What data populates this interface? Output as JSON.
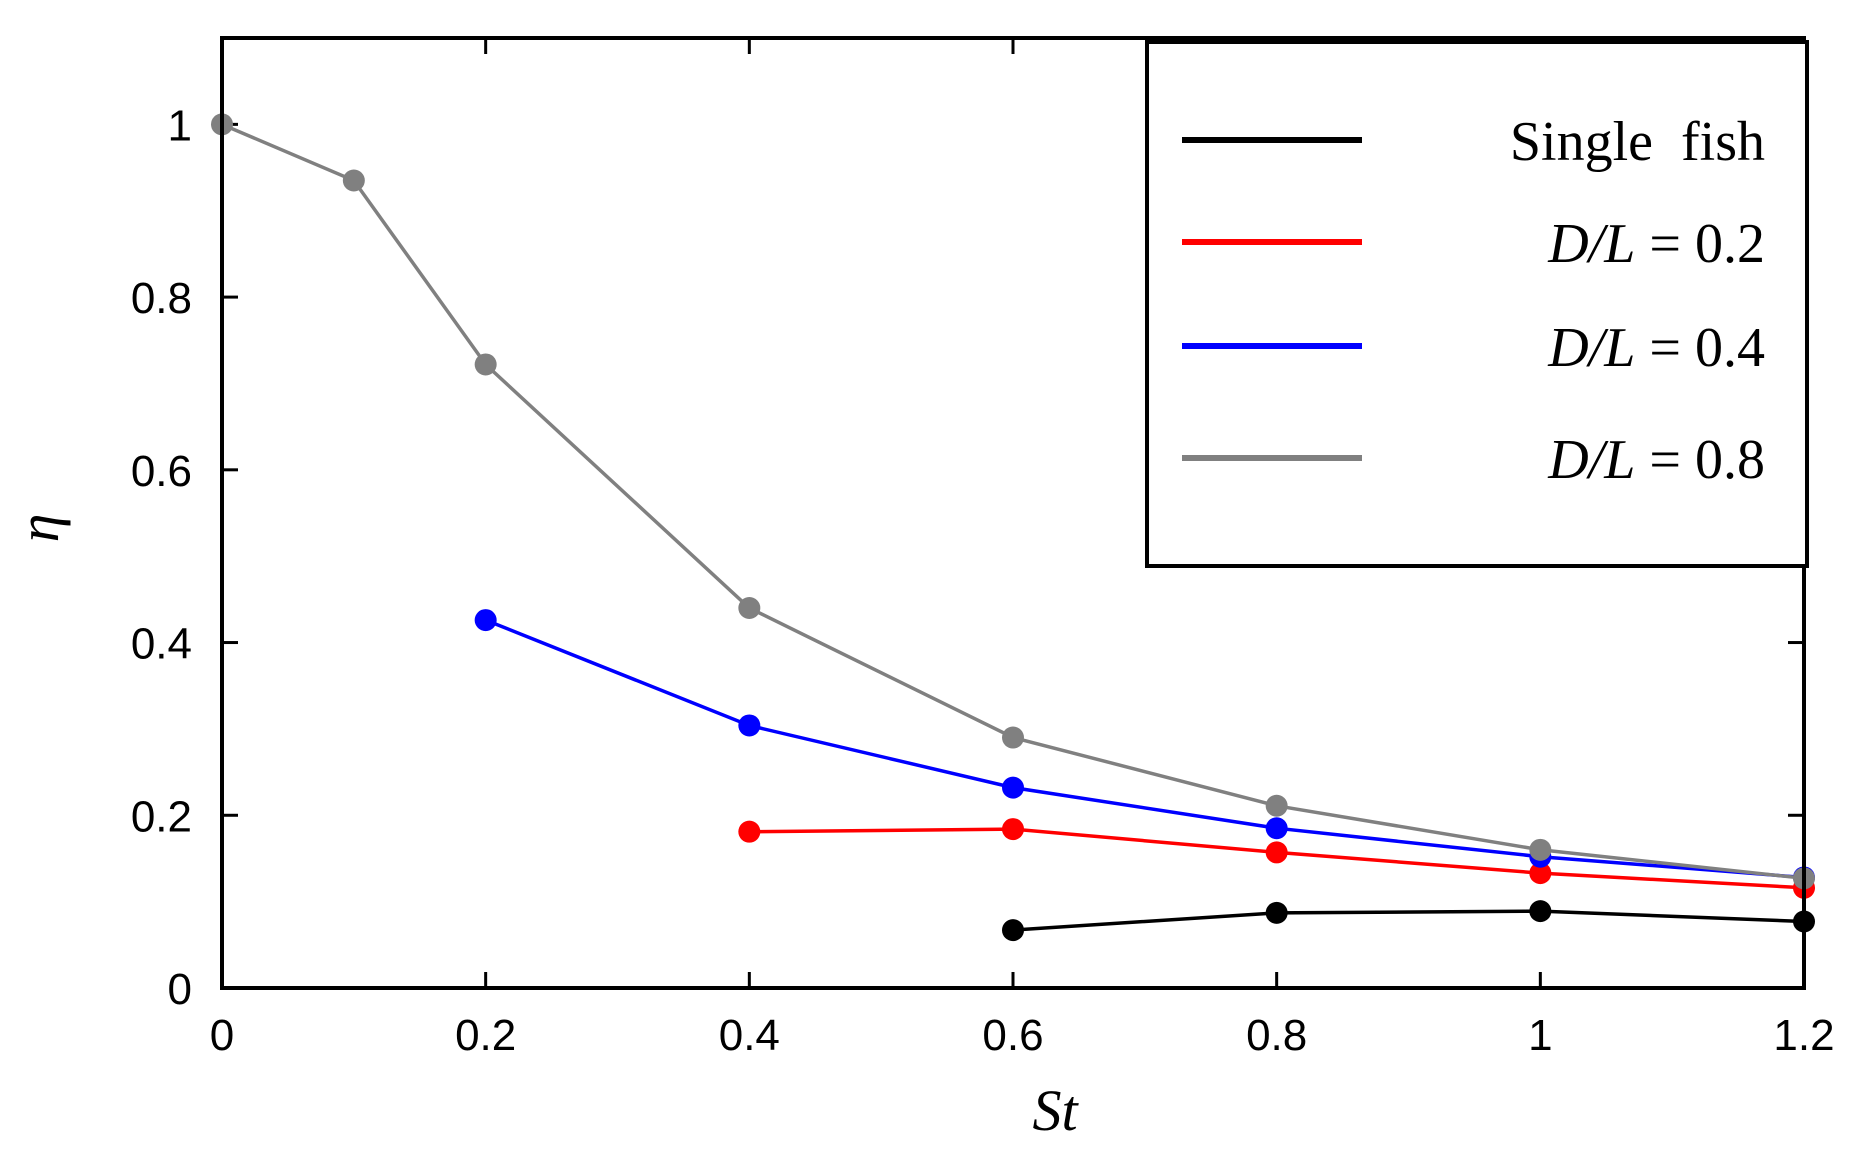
{
  "chart_data": {
    "type": "line",
    "title": "",
    "xlabel": "St",
    "ylabel": "η",
    "xlim": [
      0,
      1.2
    ],
    "ylim": [
      0,
      1.1
    ],
    "x_ticks": [
      0,
      0.2,
      0.4,
      0.6,
      0.8,
      1,
      1.2
    ],
    "x_tick_labels": [
      "0",
      "0.2",
      "0.4",
      "0.6",
      "0.8",
      "1",
      "1.2"
    ],
    "y_ticks": [
      0,
      0.2,
      0.4,
      0.6,
      0.8,
      1
    ],
    "y_tick_labels": [
      "0",
      "0.2",
      "0.4",
      "0.6",
      "0.8",
      "1"
    ],
    "grid": false,
    "legend_position": "top-right",
    "series": [
      {
        "name": "Single fish",
        "label_parts": [
          "Single  fish"
        ],
        "color": "#000000",
        "x": [
          0.6,
          0.8,
          1.0,
          1.2
        ],
        "y": [
          0.067,
          0.087,
          0.089,
          0.077
        ]
      },
      {
        "name": "D/L = 0.2",
        "label_parts": [
          "D/L",
          " = 0.2"
        ],
        "color": "#ff0000",
        "x": [
          0.4,
          0.6,
          0.8,
          1.0,
          1.2
        ],
        "y": [
          0.181,
          0.184,
          0.157,
          0.133,
          0.116
        ]
      },
      {
        "name": "D/L = 0.4",
        "label_parts": [
          "D/L",
          " = 0.4"
        ],
        "color": "#0000ff",
        "x": [
          0.2,
          0.4,
          0.6,
          0.8,
          1.0,
          1.2
        ],
        "y": [
          0.426,
          0.304,
          0.232,
          0.185,
          0.152,
          0.128
        ]
      },
      {
        "name": "D/L = 0.8",
        "label_parts": [
          "D/L",
          " = 0.8"
        ],
        "color": "#808080",
        "x": [
          0.0,
          0.1,
          0.2,
          0.4,
          0.6,
          0.8,
          1.0,
          1.2
        ],
        "y": [
          1.0,
          0.935,
          0.722,
          0.44,
          0.29,
          0.211,
          0.16,
          0.127
        ]
      }
    ]
  }
}
